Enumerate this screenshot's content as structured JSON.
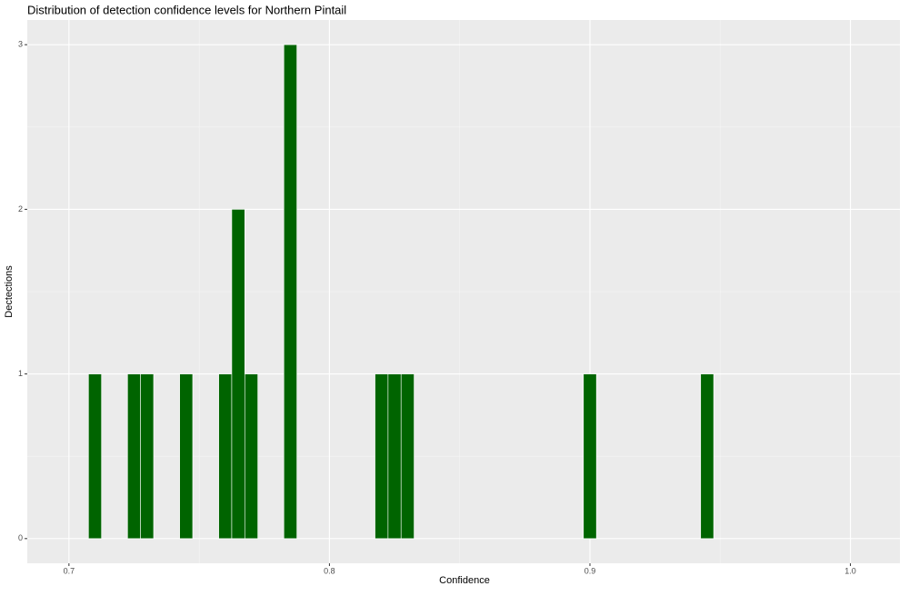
{
  "chart_data": {
    "type": "histogram",
    "title": "Distribution of detection confidence levels for Northern Pintail",
    "x_label": "Confidence",
    "y_label": "Dectections",
    "bins": [
      0.7075,
      0.7125,
      0.7175,
      0.7225,
      0.7275,
      0.7325,
      0.7375,
      0.7425,
      0.7475,
      0.7525,
      0.7575,
      0.7625,
      0.7675,
      0.7725,
      0.7775,
      0.7825,
      0.7875,
      0.7925,
      0.7975,
      0.8025,
      0.8075,
      0.8125,
      0.8175,
      0.8225,
      0.8275,
      0.8325,
      0.8375,
      0.8425,
      0.8475,
      0.8525,
      0.8575,
      0.8625,
      0.8675,
      0.8725,
      0.8775,
      0.8825,
      0.8875,
      0.8925,
      0.8975,
      0.9025,
      0.9075,
      0.9125,
      0.9175,
      0.9225,
      0.9275,
      0.9325,
      0.9375,
      0.9425,
      0.9475
    ],
    "values": [
      1,
      0,
      0,
      1,
      1,
      0,
      0,
      1,
      0,
      0,
      1,
      2,
      1,
      0,
      0,
      3,
      0,
      0,
      0,
      0,
      0,
      0,
      1,
      1,
      1,
      0,
      0,
      0,
      0,
      0,
      0,
      0,
      0,
      0,
      0,
      0,
      0,
      0,
      1,
      0,
      0,
      0,
      0,
      0,
      0,
      0,
      0,
      1
    ],
    "color": "#006400",
    "xlim": [
      0.684,
      1.019
    ],
    "ylim": [
      -0.15,
      3.15
    ],
    "xticks": [
      {
        "value": 0.7,
        "label": "0.7"
      },
      {
        "value": 0.8,
        "label": "0.8"
      },
      {
        "value": 0.9,
        "label": "0.9"
      },
      {
        "value": 1.0,
        "label": "1.0"
      }
    ],
    "yticks": [
      0,
      1,
      2,
      3
    ],
    "x_minor_breaks": [
      0.75,
      0.85,
      0.95
    ],
    "y_minor_breaks": [
      0.5,
      1.5,
      2.5
    ],
    "grid": true
  }
}
